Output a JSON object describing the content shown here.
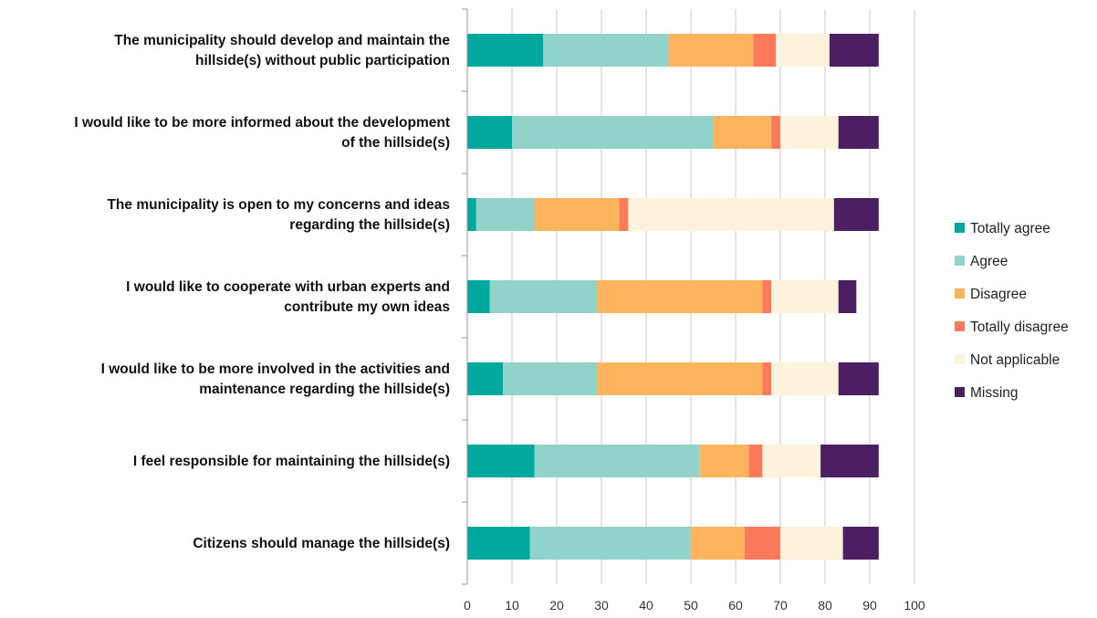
{
  "chart_data": {
    "type": "bar",
    "orientation": "horizontal",
    "stacked": true,
    "title": "",
    "xlabel": "",
    "ylabel": "",
    "xlim": [
      0,
      100
    ],
    "x_ticks": [
      0,
      10,
      20,
      30,
      40,
      50,
      60,
      70,
      80,
      90,
      100
    ],
    "grid": "vertical gridlines",
    "legend_position": "right",
    "categories": [
      [
        "The municipality should develop and maintain the",
        "hillside(s) without public participation"
      ],
      [
        "I would like to be more informed about the development",
        "of the hillside(s)"
      ],
      [
        "The municipality is open to my concerns and ideas",
        "regarding the hillside(s)"
      ],
      [
        "I would like to cooperate with urban experts and",
        "contribute my own ideas"
      ],
      [
        "I would like to be more involved in the activities and",
        "maintenance regarding the hillside(s)"
      ],
      [
        "I feel responsible for maintaining the hillside(s)"
      ],
      [
        "Citizens should manage the hillside(s)"
      ]
    ],
    "series": [
      {
        "name": "Totally agree",
        "color": "#00A99D",
        "values": [
          17,
          10,
          2,
          5,
          8,
          15,
          14
        ]
      },
      {
        "name": "Agree",
        "color": "#92D3C9",
        "values": [
          28,
          45,
          13,
          24,
          21,
          37,
          36
        ]
      },
      {
        "name": "Disagree",
        "color": "#FDB45C",
        "values": [
          19,
          13,
          19,
          37,
          37,
          11,
          12
        ]
      },
      {
        "name": "Totally disagree",
        "color": "#FB7A5B",
        "values": [
          5,
          2,
          2,
          2,
          2,
          3,
          8
        ]
      },
      {
        "name": "Not applicable",
        "color": "#FDF3DC",
        "values": [
          12,
          13,
          46,
          15,
          15,
          13,
          14
        ]
      },
      {
        "name": "Missing",
        "color": "#4B1F62",
        "values": [
          11,
          9,
          10,
          4,
          9,
          13,
          8
        ]
      }
    ]
  }
}
